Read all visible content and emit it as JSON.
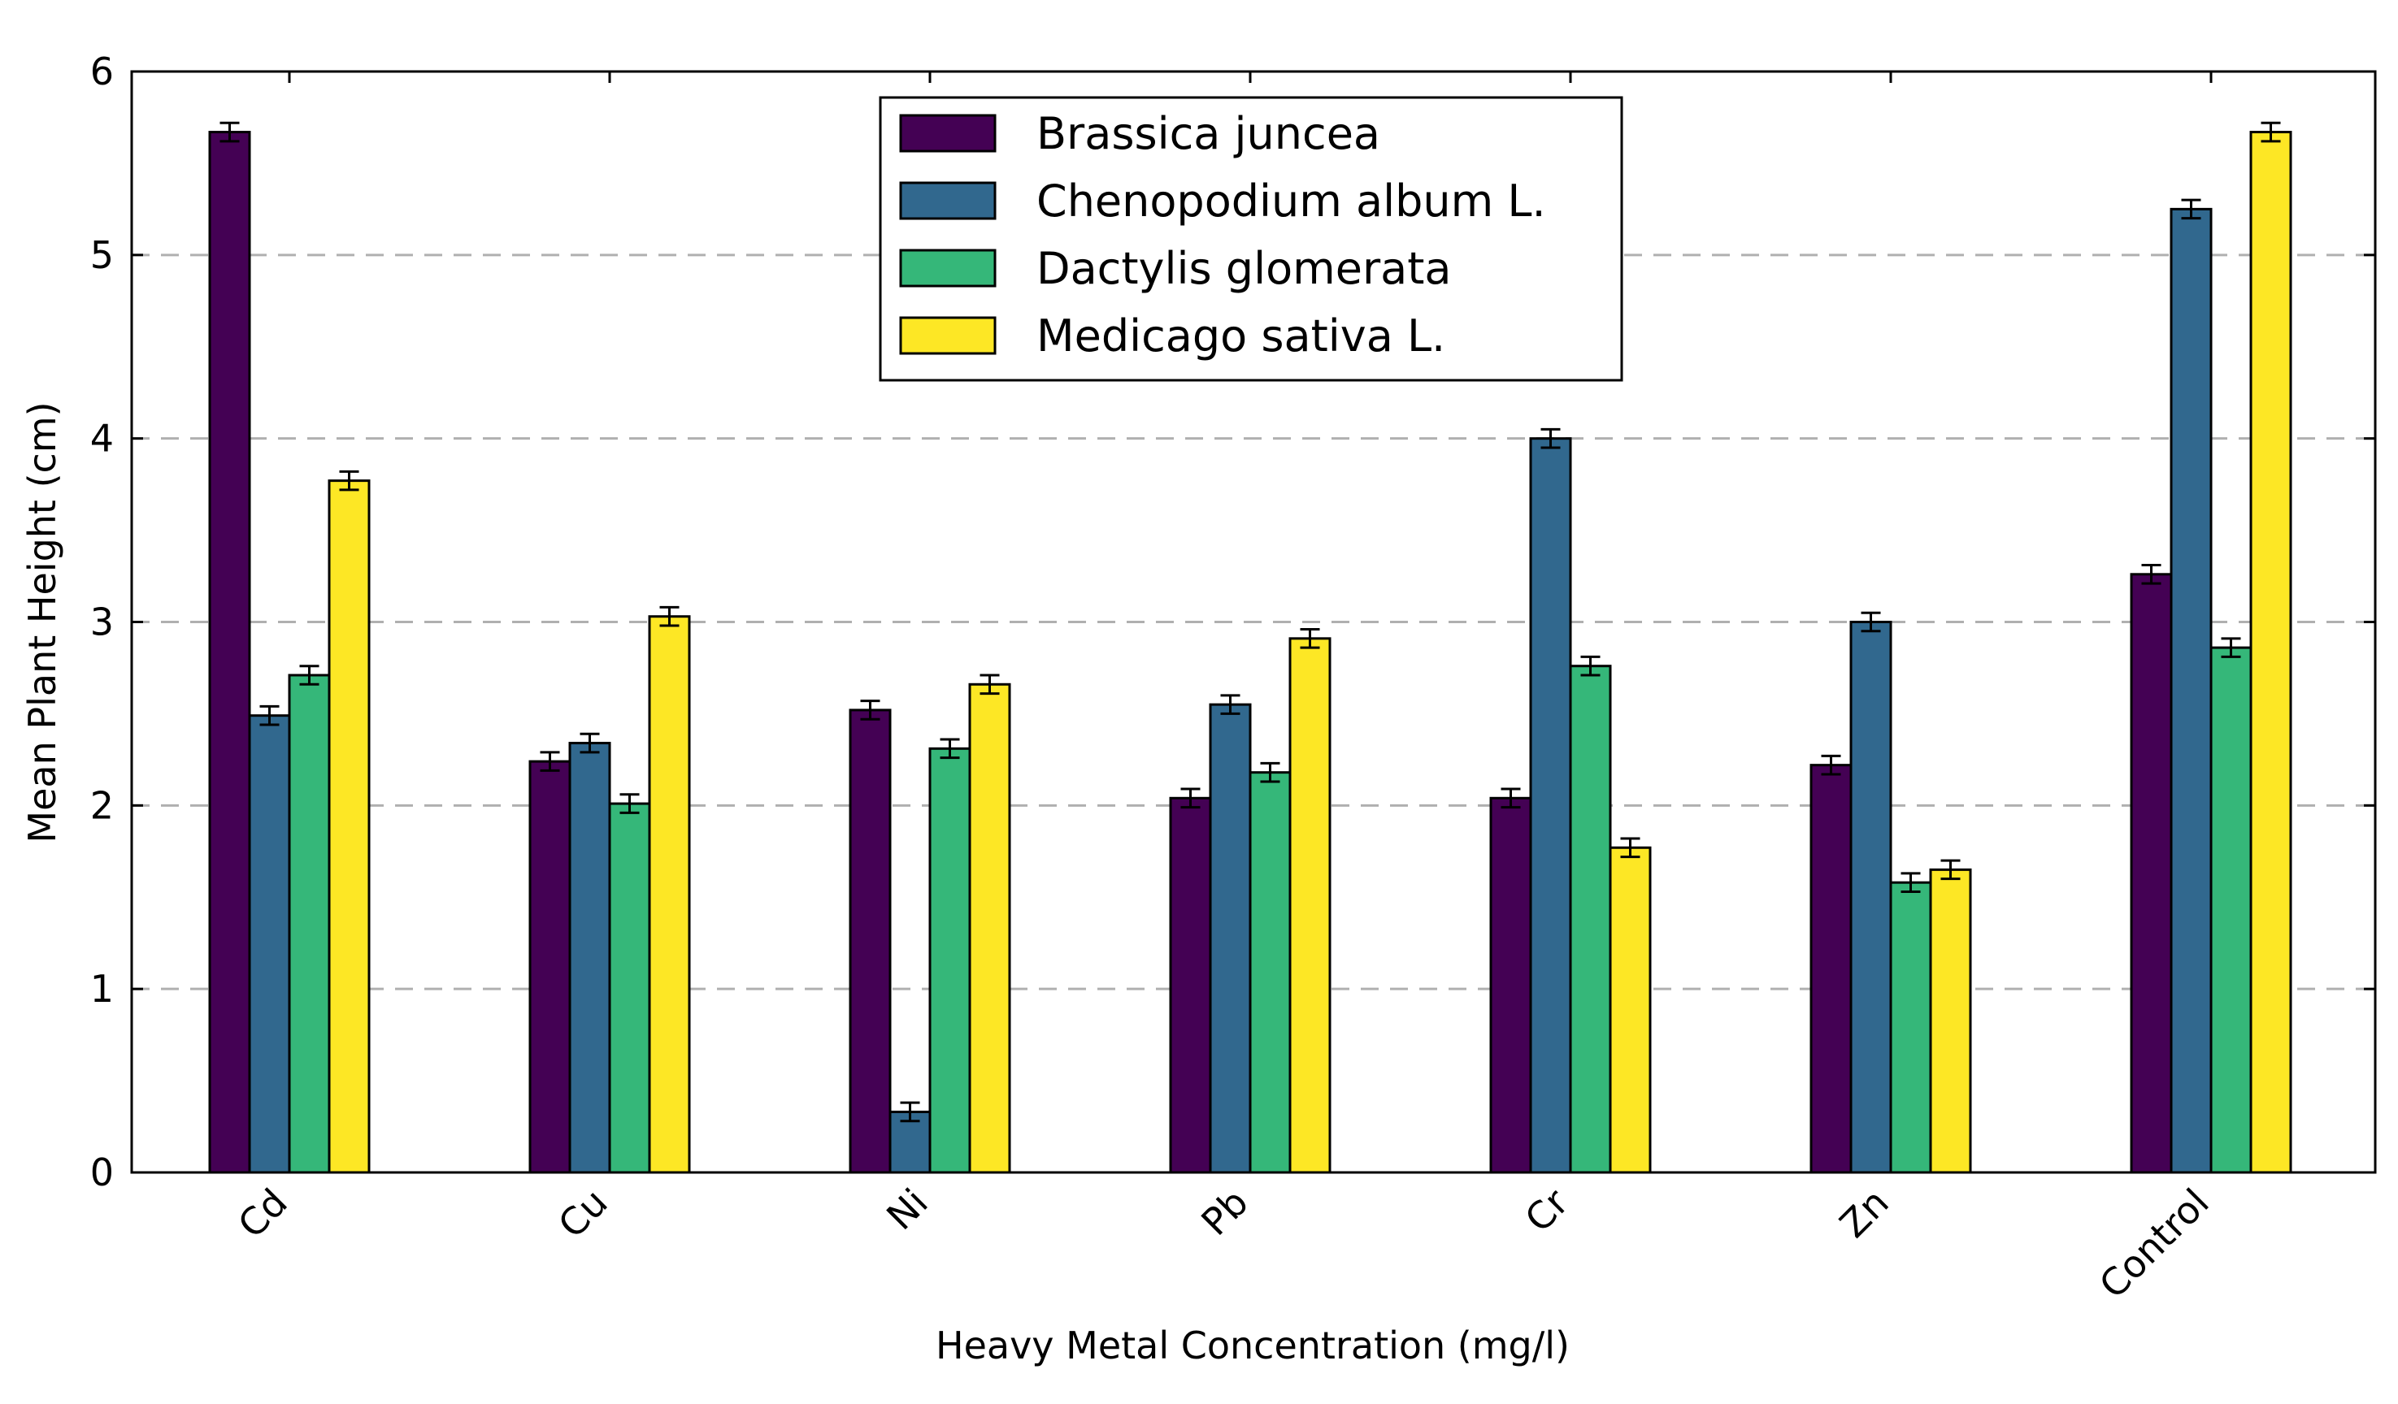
{
  "chart_data": {
    "type": "bar",
    "xlabel": "Heavy Metal Concentration (mg/l)",
    "ylabel": "Mean Plant Height (cm)",
    "ylim": [
      0,
      6
    ],
    "yticks": [
      "0",
      "1",
      "2",
      "3",
      "4",
      "5",
      "6"
    ],
    "grid": "horizontal dashed",
    "legend_position": "top-center",
    "categories": [
      "Cd",
      "Cu",
      "Ni",
      "Pb",
      "Cr",
      "Zn",
      "Control"
    ],
    "series": [
      {
        "name": "Brassica juncea",
        "color": "#440154",
        "values": [
          5.67,
          2.24,
          2.52,
          2.04,
          2.04,
          2.22,
          3.26
        ],
        "errors": [
          0.05,
          0.05,
          0.05,
          0.05,
          0.05,
          0.05,
          0.05
        ]
      },
      {
        "name": "Chenopodium album L.",
        "color": "#31688e",
        "values": [
          2.49,
          2.34,
          0.33,
          2.55,
          4.0,
          3.0,
          5.25
        ],
        "errors": [
          0.05,
          0.05,
          0.05,
          0.05,
          0.05,
          0.05,
          0.05
        ]
      },
      {
        "name": "Dactylis glomerata",
        "color": "#35b779",
        "values": [
          2.71,
          2.01,
          2.31,
          2.18,
          2.76,
          1.58,
          2.86
        ],
        "errors": [
          0.05,
          0.05,
          0.05,
          0.05,
          0.05,
          0.05,
          0.05
        ]
      },
      {
        "name": "Medicago sativa L.",
        "color": "#fde725",
        "values": [
          3.77,
          3.03,
          2.66,
          2.91,
          1.77,
          1.65,
          5.67
        ],
        "errors": [
          0.05,
          0.05,
          0.05,
          0.05,
          0.05,
          0.05,
          0.05
        ]
      }
    ]
  }
}
